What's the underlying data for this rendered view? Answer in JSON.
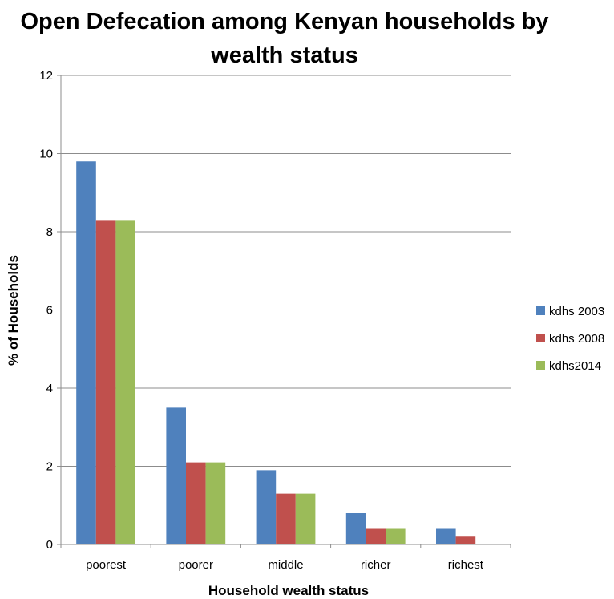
{
  "chart_data": {
    "type": "bar",
    "title_line1": "Open Defecation among Kenyan households by",
    "title_line2": "wealth status",
    "xlabel": "Household wealth status",
    "ylabel": "% of Households",
    "categories": [
      "poorest",
      "poorer",
      "middle",
      "richer",
      "richest"
    ],
    "series": [
      {
        "name": "kdhs 2003",
        "color": "#4F81BD",
        "values": [
          9.8,
          3.5,
          1.9,
          0.8,
          0.4
        ]
      },
      {
        "name": "kdhs 2008",
        "color": "#C0504D",
        "values": [
          8.3,
          2.1,
          1.3,
          0.4,
          0.2
        ]
      },
      {
        "name": "kdhs2014",
        "color": "#9BBB59",
        "values": [
          8.3,
          2.1,
          1.3,
          0.4,
          0
        ]
      }
    ],
    "ylim": [
      0,
      12
    ],
    "yticks": [
      "0",
      "2",
      "4",
      "6",
      "8",
      "10",
      "12"
    ],
    "grid": true,
    "legend_position": "right"
  }
}
